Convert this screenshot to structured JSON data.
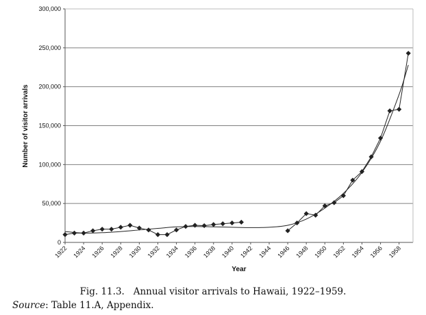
{
  "chart_data": {
    "type": "line",
    "xlabel": "Year",
    "ylabel": "Number of visitor arrivals",
    "ylim": [
      0,
      300000
    ],
    "xlim": [
      1922,
      1959.5
    ],
    "y_ticks": [
      "0",
      "50,000",
      "100,000",
      "150,000",
      "200,000",
      "250,000",
      "300,000"
    ],
    "y_tick_values": [
      0,
      50000,
      100000,
      150000,
      200000,
      250000,
      300000
    ],
    "x_ticks": [
      "1922",
      "1924",
      "1926",
      "1928",
      "1930",
      "1932",
      "1934",
      "1936",
      "1938",
      "1940",
      "1942",
      "1944",
      "1946",
      "1948",
      "1950",
      "1952",
      "1954",
      "1956",
      "1958"
    ],
    "x_tick_values": [
      1922,
      1924,
      1926,
      1928,
      1930,
      1932,
      1934,
      1936,
      1938,
      1940,
      1942,
      1944,
      1946,
      1948,
      1950,
      1952,
      1954,
      1956,
      1958
    ],
    "grid": "horizontal",
    "marker": "diamond",
    "colors": {
      "series": "#222222",
      "grid": "#7f7f7f",
      "axis": "#555555"
    },
    "series": [
      {
        "segments": [
          {
            "x": [
              1922,
              1923,
              1924,
              1925,
              1926,
              1927,
              1928,
              1929,
              1930,
              1931,
              1932,
              1933,
              1934,
              1935,
              1936,
              1937,
              1938,
              1939,
              1940,
              1941
            ],
            "y": [
              10000,
              12000,
              12000,
              15000,
              17000,
              17000,
              19500,
              22000,
              18500,
              16000,
              10000,
              10000,
              16000,
              20500,
              22000,
              21500,
              23000,
              24000,
              25000,
              26000
            ]
          },
          {
            "x": [
              1946,
              1947,
              1948,
              1949,
              1950,
              1951,
              1952,
              1953,
              1954,
              1955,
              1956,
              1957,
              1958,
              1959
            ],
            "y": [
              15000,
              25000,
              37000,
              35000,
              47000,
              51000,
              60000,
              80000,
              91000,
              110000,
              134000,
              169000,
              171000,
              243000
            ]
          }
        ]
      },
      {
        "trend": true,
        "x": [
          1922,
          1924,
          1926,
          1928,
          1930,
          1932,
          1934,
          1936,
          1938,
          1940,
          1942,
          1944,
          1946,
          1948,
          1950,
          1952,
          1954,
          1956,
          1958,
          1959
        ],
        "y": [
          14000,
          12000,
          12500,
          14000,
          16000,
          18000,
          20000,
          20500,
          20000,
          19500,
          19000,
          19500,
          22000,
          30000,
          44000,
          63000,
          90000,
          130000,
          190000,
          228000
        ]
      }
    ]
  },
  "caption": {
    "figure": "Fig. 11.3.",
    "text": "Annual visitor arrivals to Hawaii, 1922–1959.",
    "source_label": "Source",
    "source_text": ": Table 11.A, Appendix."
  }
}
